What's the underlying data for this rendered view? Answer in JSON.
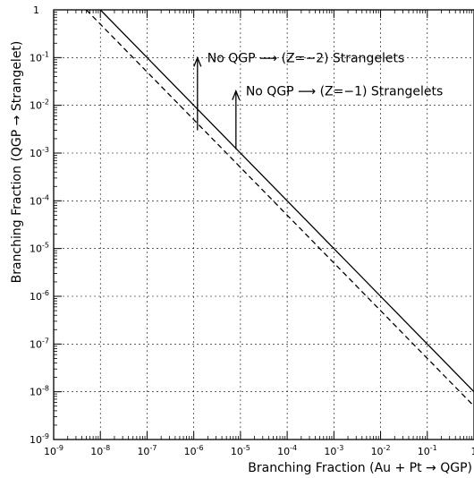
{
  "chart_data": {
    "type": "line",
    "xlabel": "Branching Fraction (Au + Pt → QGP)",
    "ylabel": "Branching Fraction (QGP → Strangelet)",
    "xscale": "log",
    "yscale": "log",
    "xlim": [
      1e-09,
      1
    ],
    "ylim": [
      1e-09,
      1
    ],
    "grid": true,
    "x_ticks": [
      {
        "base": "10",
        "exp": "-9",
        "value": 1e-09
      },
      {
        "base": "10",
        "exp": "-8",
        "value": 1e-08
      },
      {
        "base": "10",
        "exp": "-7",
        "value": 1e-07
      },
      {
        "base": "10",
        "exp": "-6",
        "value": 1e-06
      },
      {
        "base": "10",
        "exp": "-5",
        "value": 1e-05
      },
      {
        "base": "10",
        "exp": "-4",
        "value": 0.0001
      },
      {
        "base": "10",
        "exp": "-3",
        "value": 0.001
      },
      {
        "base": "10",
        "exp": "-2",
        "value": 0.01
      },
      {
        "base": "10",
        "exp": "-1",
        "value": 0.1
      },
      {
        "base": "1",
        "exp": "",
        "value": 1
      }
    ],
    "y_ticks": [
      {
        "base": "1",
        "exp": "",
        "value": 1
      },
      {
        "base": "10",
        "exp": "-1",
        "value": 0.1
      },
      {
        "base": "10",
        "exp": "-2",
        "value": 0.01
      },
      {
        "base": "10",
        "exp": "-3",
        "value": 0.001
      },
      {
        "base": "10",
        "exp": "-4",
        "value": 0.0001
      },
      {
        "base": "10",
        "exp": "-5",
        "value": 1e-05
      },
      {
        "base": "10",
        "exp": "-6",
        "value": 1e-06
      },
      {
        "base": "10",
        "exp": "-7",
        "value": 1e-07
      },
      {
        "base": "10",
        "exp": "-8",
        "value": 1e-08
      },
      {
        "base": "10",
        "exp": "-9",
        "value": 1e-09
      }
    ],
    "series": [
      {
        "style": "solid",
        "x": [
          1e-08,
          1
        ],
        "y": [
          1,
          1e-08
        ]
      },
      {
        "style": "dashed",
        "x": [
          5e-09,
          1
        ],
        "y": [
          1,
          5e-09
        ]
      }
    ],
    "annotations": [
      {
        "text": "No QGP ⟶ (Z=−2) Strangelets",
        "arrow_x": 1.2e-06,
        "arrow_y_from": 0.003,
        "arrow_y_to": 0.1
      },
      {
        "text": "No QGP ⟶ (Z=−1) Strangelets",
        "arrow_x": 8e-06,
        "arrow_y_from": 0.0012,
        "arrow_y_to": 0.02
      }
    ]
  }
}
